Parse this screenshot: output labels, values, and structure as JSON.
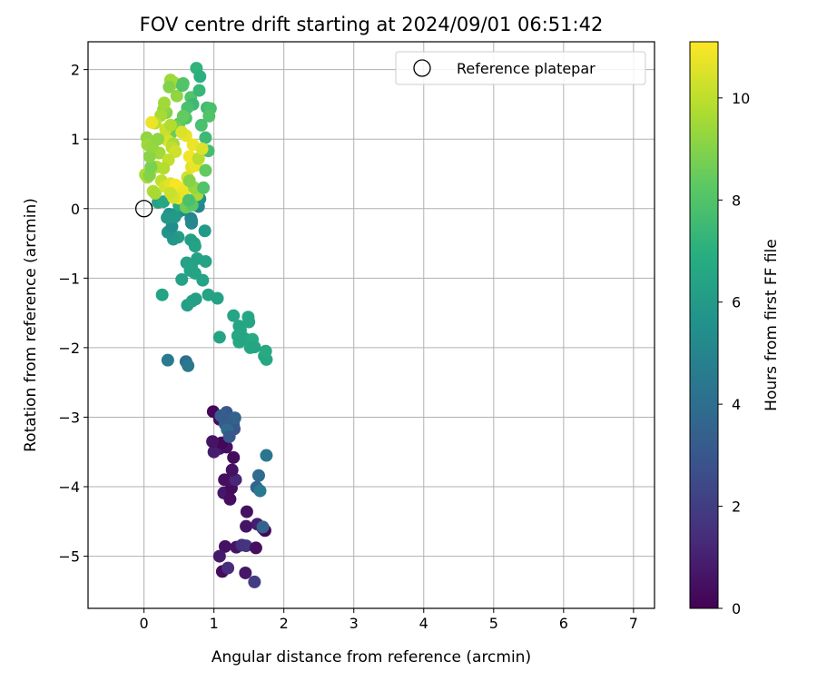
{
  "chart_data": {
    "type": "scatter",
    "title": "FOV centre drift starting at 2024/09/01 06:51:42",
    "xlabel": "Angular distance from reference (arcmin)",
    "ylabel": "Rotation from reference (arcmin)",
    "xlim": [
      -0.8,
      7.3
    ],
    "ylim": [
      -5.75,
      2.4
    ],
    "xticks": [
      0,
      1,
      2,
      3,
      4,
      5,
      6,
      7
    ],
    "yticks": [
      -5,
      -4,
      -3,
      -2,
      -1,
      0,
      1,
      2
    ],
    "grid": true,
    "legend": {
      "placement": "top-right",
      "entries": [
        "Reference platepar"
      ]
    },
    "reference_point": {
      "x": 0,
      "y": 0
    },
    "colorbar": {
      "label": "Hours from first FF file",
      "range": [
        0,
        11.1
      ],
      "ticks": [
        0,
        2,
        4,
        6,
        8,
        10
      ],
      "colormap": "viridis"
    },
    "points": [
      [
        1.12,
        -5.22,
        0.3
      ],
      [
        1.16,
        -4.86,
        0.5
      ],
      [
        1.2,
        -5.17,
        1.4
      ],
      [
        1.08,
        -5.0,
        0.8
      ],
      [
        1.32,
        -4.87,
        0.6
      ],
      [
        1.45,
        -5.24,
        0.7
      ],
      [
        1.4,
        -4.84,
        1.5
      ],
      [
        1.46,
        -4.85,
        1.7
      ],
      [
        1.6,
        -4.88,
        0.4
      ],
      [
        1.62,
        -4.54,
        0.9
      ],
      [
        1.7,
        -4.6,
        1.1
      ],
      [
        1.73,
        -4.63,
        0.2
      ],
      [
        1.46,
        -4.57,
        0.6
      ],
      [
        1.47,
        -4.36,
        0.5
      ],
      [
        1.58,
        -5.37,
        2.0
      ],
      [
        1.7,
        -4.58,
        3.5
      ],
      [
        1.14,
        -4.09,
        0.7
      ],
      [
        1.23,
        -4.18,
        0.4
      ],
      [
        1.25,
        -4.02,
        0.3
      ],
      [
        1.22,
        -3.9,
        0.6
      ],
      [
        1.15,
        -3.9,
        0.4
      ],
      [
        1.31,
        -3.9,
        1.2
      ],
      [
        1.26,
        -3.76,
        0.5
      ],
      [
        1.28,
        -3.58,
        0.3
      ],
      [
        1.08,
        -3.45,
        0.8
      ],
      [
        1.0,
        -3.5,
        0.9
      ],
      [
        1.18,
        -3.43,
        0.5
      ],
      [
        1.11,
        -3.37,
        0.2
      ],
      [
        0.98,
        -3.35,
        0.6
      ],
      [
        0.99,
        -2.92,
        0.2
      ],
      [
        1.08,
        -3.03,
        0.4
      ],
      [
        1.18,
        -2.93,
        3.0
      ],
      [
        1.15,
        -2.97,
        3.1
      ],
      [
        1.1,
        -2.98,
        3.3
      ],
      [
        1.22,
        -3.05,
        3.2
      ],
      [
        1.28,
        -3.06,
        3.6
      ],
      [
        1.28,
        -3.12,
        3.4
      ],
      [
        1.29,
        -3.17,
        3.0
      ],
      [
        1.3,
        -3.01,
        3.5
      ],
      [
        1.16,
        -3.1,
        3.2
      ],
      [
        1.19,
        -3.18,
        3.8
      ],
      [
        1.22,
        -3.28,
        3.1
      ],
      [
        1.64,
        -3.84,
        3.9
      ],
      [
        1.61,
        -4.01,
        3.6
      ],
      [
        1.66,
        -4.06,
        4.5
      ],
      [
        1.75,
        -3.55,
        4.3
      ],
      [
        0.34,
        -2.18,
        4.5
      ],
      [
        0.6,
        -2.2,
        4.0
      ],
      [
        0.63,
        -2.26,
        4.4
      ],
      [
        0.26,
        -1.24,
        6.4
      ],
      [
        0.62,
        -1.39,
        6.2
      ],
      [
        0.69,
        -1.33,
        6.3
      ],
      [
        0.74,
        -1.3,
        6.2
      ],
      [
        0.54,
        -1.02,
        6.3
      ],
      [
        0.84,
        -1.03,
        6.4
      ],
      [
        0.92,
        -1.24,
        6.4
      ],
      [
        1.05,
        -1.29,
        6.3
      ],
      [
        1.08,
        -1.85,
        6.4
      ],
      [
        1.28,
        -1.54,
        6.5
      ],
      [
        1.36,
        -1.69,
        6.5
      ],
      [
        1.38,
        -1.75,
        6.5
      ],
      [
        1.49,
        -1.56,
        6.6
      ],
      [
        1.5,
        -1.63,
        6.5
      ],
      [
        1.34,
        -1.83,
        6.6
      ],
      [
        1.36,
        -1.92,
        6.6
      ],
      [
        1.44,
        -1.87,
        6.5
      ],
      [
        1.55,
        -1.88,
        6.7
      ],
      [
        1.52,
        -2.0,
        6.6
      ],
      [
        1.58,
        -1.99,
        6.5
      ],
      [
        1.72,
        -2.12,
        6.6
      ],
      [
        1.75,
        -2.17,
        6.6
      ],
      [
        1.74,
        -2.05,
        6.7
      ],
      [
        0.61,
        -0.78,
        6.3
      ],
      [
        0.68,
        -0.84,
        6.3
      ],
      [
        0.66,
        -0.89,
        6.4
      ],
      [
        0.73,
        -0.93,
        6.4
      ],
      [
        0.76,
        -0.72,
        6.3
      ],
      [
        0.88,
        -0.76,
        6.4
      ],
      [
        0.72,
        -0.5,
        6.3
      ],
      [
        0.67,
        -0.45,
        6.2
      ],
      [
        0.73,
        -0.54,
        6.3
      ],
      [
        0.87,
        -0.32,
        6.0
      ],
      [
        0.49,
        -0.41,
        6.1
      ],
      [
        0.42,
        -0.44,
        5.9
      ],
      [
        0.34,
        -0.34,
        5.7
      ],
      [
        0.4,
        -0.26,
        5.4
      ],
      [
        0.67,
        -0.14,
        5.0
      ],
      [
        0.68,
        -0.17,
        5.1
      ],
      [
        0.68,
        -0.21,
        5.2
      ],
      [
        0.78,
        0.03,
        5.0
      ],
      [
        0.8,
        0.14,
        5.4
      ],
      [
        0.55,
        -0.02,
        5.3
      ],
      [
        0.48,
        -0.06,
        5.4
      ],
      [
        0.36,
        -0.08,
        5.6
      ],
      [
        0.33,
        -0.13,
        5.9
      ],
      [
        0.44,
        -0.12,
        6.0
      ],
      [
        0.2,
        0.09,
        6.3
      ],
      [
        0.28,
        0.1,
        6.6
      ],
      [
        0.5,
        0.05,
        6.8
      ],
      [
        0.55,
        0.12,
        7.0
      ],
      [
        0.38,
        1.85,
        9.4
      ],
      [
        0.43,
        1.81,
        9.5
      ],
      [
        0.36,
        1.75,
        9.0
      ],
      [
        0.47,
        1.62,
        9.2
      ],
      [
        0.55,
        1.77,
        7.9
      ],
      [
        0.56,
        1.8,
        8.0
      ],
      [
        0.67,
        1.6,
        8.0
      ],
      [
        0.7,
        1.5,
        7.5
      ],
      [
        0.75,
        2.02,
        7.2
      ],
      [
        0.8,
        1.9,
        7.0
      ],
      [
        0.79,
        1.7,
        7.4
      ],
      [
        0.9,
        1.45,
        7.6
      ],
      [
        0.95,
        1.44,
        7.8
      ],
      [
        0.93,
        1.33,
        8.0
      ],
      [
        0.82,
        1.2,
        7.8
      ],
      [
        0.88,
        1.02,
        7.5
      ],
      [
        0.92,
        0.83,
        7.7
      ],
      [
        0.62,
        1.45,
        7.8
      ],
      [
        0.6,
        1.3,
        8.0
      ],
      [
        0.5,
        1.22,
        8.2
      ],
      [
        0.56,
        1.33,
        8.4
      ],
      [
        0.45,
        1.18,
        8.7
      ],
      [
        0.4,
        1.1,
        8.5
      ],
      [
        0.32,
        1.38,
        9.0
      ],
      [
        0.28,
        1.43,
        9.2
      ],
      [
        0.29,
        1.52,
        9.5
      ],
      [
        0.24,
        1.34,
        9.6
      ],
      [
        0.16,
        1.23,
        10.0
      ],
      [
        0.11,
        1.24,
        10.8
      ],
      [
        0.04,
        1.02,
        9.2
      ],
      [
        0.05,
        0.92,
        9.4
      ],
      [
        0.02,
        0.49,
        9.7
      ],
      [
        0.05,
        0.45,
        9.5
      ],
      [
        0.08,
        0.48,
        9.0
      ],
      [
        0.13,
        0.25,
        9.8
      ],
      [
        0.16,
        0.22,
        9.6
      ],
      [
        0.18,
        0.6,
        9.8
      ],
      [
        0.22,
        0.8,
        9.5
      ],
      [
        0.29,
        1.01,
        10.6
      ],
      [
        0.34,
        0.98,
        10.4
      ],
      [
        0.31,
        1.14,
        10.2
      ],
      [
        0.38,
        1.2,
        9.8
      ],
      [
        0.42,
        0.93,
        9.6
      ],
      [
        0.4,
        0.88,
        10.0
      ],
      [
        0.45,
        0.82,
        10.3
      ],
      [
        0.35,
        0.7,
        10.1
      ],
      [
        0.28,
        0.58,
        9.8
      ],
      [
        0.25,
        0.4,
        10.0
      ],
      [
        0.3,
        0.32,
        10.4
      ],
      [
        0.38,
        0.36,
        10.6
      ],
      [
        0.45,
        0.34,
        11.0
      ],
      [
        0.52,
        0.3,
        11.0
      ],
      [
        0.58,
        0.27,
        10.9
      ],
      [
        0.55,
        0.22,
        10.8
      ],
      [
        0.5,
        0.15,
        10.7
      ],
      [
        0.42,
        0.16,
        10.4
      ],
      [
        0.38,
        0.22,
        10.2
      ],
      [
        0.62,
        0.45,
        10.3
      ],
      [
        0.68,
        0.6,
        10.6
      ],
      [
        0.74,
        0.62,
        10.8
      ],
      [
        0.65,
        0.75,
        10.9
      ],
      [
        0.7,
        0.92,
        10.8
      ],
      [
        0.6,
        1.05,
        10.7
      ],
      [
        0.54,
        1.1,
        10.5
      ],
      [
        0.78,
        0.72,
        9.9
      ],
      [
        0.83,
        0.86,
        10.5
      ],
      [
        0.76,
        0.2,
        9.6
      ],
      [
        0.72,
        0.3,
        9.3
      ],
      [
        0.65,
        0.4,
        9.0
      ],
      [
        0.6,
        0.02,
        8.6
      ],
      [
        0.69,
        0.05,
        8.2
      ],
      [
        0.64,
        0.12,
        7.8
      ],
      [
        0.85,
        0.3,
        8.0
      ],
      [
        0.88,
        0.55,
        8.4
      ],
      [
        0.1,
        0.6,
        8.8
      ],
      [
        0.08,
        0.75,
        9.1
      ],
      [
        0.12,
        0.9,
        9.3
      ],
      [
        0.2,
        1.0,
        9.2
      ]
    ]
  }
}
